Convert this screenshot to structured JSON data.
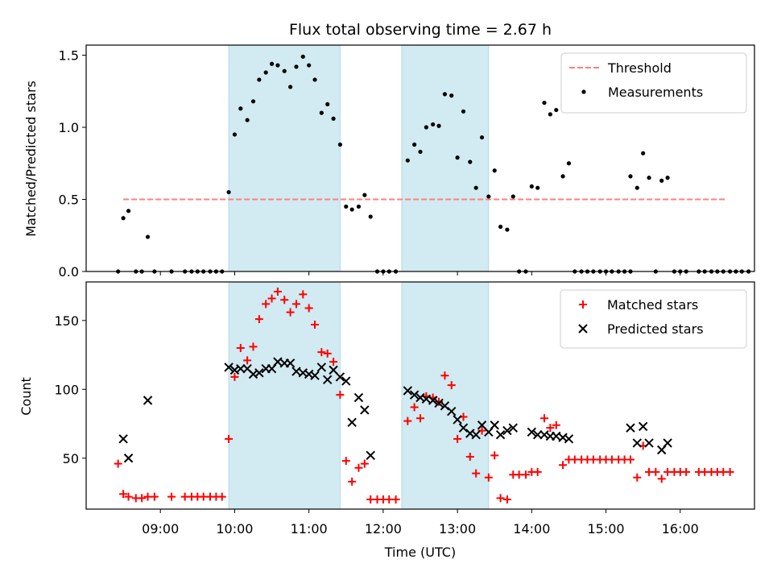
{
  "figure": {
    "title": "Flux total observing time = 2.67 h",
    "xlabel": "Time (UTC)",
    "x_ticks": [
      "09:00",
      "10:00",
      "11:00",
      "12:00",
      "13:00",
      "14:00",
      "15:00",
      "16:00"
    ],
    "highlight_color": "#add8e6",
    "shaded_intervals": [
      [
        9.92,
        11.42
      ],
      [
        12.25,
        13.42
      ]
    ]
  },
  "chart_data": [
    {
      "type": "scatter",
      "panel": "top",
      "ylabel": "Matched/Predicted stars",
      "ylim": [
        0,
        1.57
      ],
      "xlim": [
        8.0,
        17.0
      ],
      "y_ticks": [
        0.0,
        0.5,
        1.0,
        1.5
      ],
      "legend_placement": "top-right",
      "threshold": {
        "name": "Threshold",
        "value": 0.5,
        "x_range": [
          8.5,
          16.6
        ],
        "color": "#ff7f7f"
      },
      "series": [
        {
          "name": "Measurements",
          "color": "#000000",
          "points": [
            [
              8.43,
              0
            ],
            [
              8.5,
              0.37
            ],
            [
              8.57,
              0.42
            ],
            [
              8.67,
              0
            ],
            [
              8.75,
              0
            ],
            [
              8.83,
              0.24
            ],
            [
              8.92,
              0
            ],
            [
              9.15,
              0
            ],
            [
              9.33,
              0
            ],
            [
              9.42,
              0
            ],
            [
              9.5,
              0
            ],
            [
              9.58,
              0
            ],
            [
              9.67,
              0
            ],
            [
              9.75,
              0
            ],
            [
              9.83,
              0
            ],
            [
              9.92,
              0.55
            ],
            [
              10.0,
              0.95
            ],
            [
              10.08,
              1.13
            ],
            [
              10.17,
              1.05
            ],
            [
              10.25,
              1.18
            ],
            [
              10.33,
              1.33
            ],
            [
              10.42,
              1.38
            ],
            [
              10.5,
              1.44
            ],
            [
              10.58,
              1.43
            ],
            [
              10.67,
              1.39
            ],
            [
              10.75,
              1.28
            ],
            [
              10.83,
              1.42
            ],
            [
              10.92,
              1.49
            ],
            [
              11.0,
              1.43
            ],
            [
              11.08,
              1.33
            ],
            [
              11.17,
              1.1
            ],
            [
              11.25,
              1.16
            ],
            [
              11.33,
              1.06
            ],
            [
              11.42,
              0.88
            ],
            [
              11.5,
              0.45
            ],
            [
              11.58,
              0.43
            ],
            [
              11.67,
              0.45
            ],
            [
              11.75,
              0.53
            ],
            [
              11.83,
              0.38
            ],
            [
              11.92,
              0
            ],
            [
              12.0,
              0
            ],
            [
              12.08,
              0
            ],
            [
              12.17,
              0
            ],
            [
              12.33,
              0.77
            ],
            [
              12.42,
              0.88
            ],
            [
              12.5,
              0.83
            ],
            [
              12.58,
              1.0
            ],
            [
              12.67,
              1.02
            ],
            [
              12.75,
              1.01
            ],
            [
              12.83,
              1.23
            ],
            [
              12.92,
              1.22
            ],
            [
              13.0,
              0.79
            ],
            [
              13.08,
              1.11
            ],
            [
              13.17,
              0.76
            ],
            [
              13.25,
              0.58
            ],
            [
              13.33,
              0.93
            ],
            [
              13.42,
              0.52
            ],
            [
              13.5,
              0.7
            ],
            [
              13.58,
              0.31
            ],
            [
              13.67,
              0.29
            ],
            [
              13.75,
              0.52
            ],
            [
              13.83,
              0
            ],
            [
              13.92,
              0
            ],
            [
              14.0,
              0.59
            ],
            [
              14.08,
              0.58
            ],
            [
              14.17,
              1.17
            ],
            [
              14.25,
              1.09
            ],
            [
              14.33,
              1.12
            ],
            [
              14.42,
              0.66
            ],
            [
              14.5,
              0.75
            ],
            [
              14.58,
              0
            ],
            [
              14.67,
              0
            ],
            [
              14.75,
              0
            ],
            [
              14.83,
              0
            ],
            [
              14.92,
              0
            ],
            [
              15.0,
              0
            ],
            [
              15.08,
              0
            ],
            [
              15.17,
              0
            ],
            [
              15.25,
              0
            ],
            [
              15.33,
              0
            ],
            [
              15.33,
              0.66
            ],
            [
              15.42,
              0.58
            ],
            [
              15.5,
              0.82
            ],
            [
              15.58,
              0.65
            ],
            [
              15.67,
              0
            ],
            [
              15.75,
              0.63
            ],
            [
              15.83,
              0.65
            ],
            [
              15.92,
              0
            ],
            [
              16.0,
              0
            ],
            [
              16.08,
              0
            ],
            [
              16.25,
              0
            ],
            [
              16.33,
              0
            ],
            [
              16.42,
              0
            ],
            [
              16.5,
              0
            ],
            [
              16.58,
              0
            ],
            [
              16.67,
              0
            ],
            [
              16.75,
              0
            ],
            [
              16.83,
              0
            ],
            [
              16.92,
              0
            ]
          ]
        }
      ]
    },
    {
      "type": "scatter",
      "panel": "bottom",
      "ylabel": "Count",
      "ylim": [
        13,
        178
      ],
      "xlim": [
        8.0,
        17.0
      ],
      "y_ticks": [
        50,
        100,
        150
      ],
      "legend_placement": "top-right",
      "series": [
        {
          "name": "Matched stars",
          "marker": "+",
          "color": "#ff0000",
          "points": [
            [
              8.43,
              46
            ],
            [
              8.5,
              24
            ],
            [
              8.57,
              22
            ],
            [
              8.67,
              21
            ],
            [
              8.75,
              21
            ],
            [
              8.83,
              22
            ],
            [
              8.92,
              22
            ],
            [
              9.15,
              22
            ],
            [
              9.33,
              22
            ],
            [
              9.42,
              22
            ],
            [
              9.5,
              22
            ],
            [
              9.58,
              22
            ],
            [
              9.67,
              22
            ],
            [
              9.75,
              22
            ],
            [
              9.83,
              22
            ],
            [
              9.92,
              64
            ],
            [
              10.0,
              109
            ],
            [
              10.08,
              130
            ],
            [
              10.17,
              121
            ],
            [
              10.25,
              131
            ],
            [
              10.33,
              151
            ],
            [
              10.42,
              162
            ],
            [
              10.5,
              166
            ],
            [
              10.58,
              171
            ],
            [
              10.67,
              165
            ],
            [
              10.75,
              156
            ],
            [
              10.83,
              162
            ],
            [
              10.92,
              169
            ],
            [
              11.0,
              159
            ],
            [
              11.08,
              147
            ],
            [
              11.17,
              127
            ],
            [
              11.25,
              126
            ],
            [
              11.33,
              120
            ],
            [
              11.42,
              96
            ],
            [
              11.5,
              48
            ],
            [
              11.58,
              33
            ],
            [
              11.67,
              43
            ],
            [
              11.75,
              46
            ],
            [
              11.83,
              20
            ],
            [
              11.92,
              20
            ],
            [
              12.0,
              20
            ],
            [
              12.08,
              20
            ],
            [
              12.17,
              20
            ],
            [
              12.33,
              77
            ],
            [
              12.42,
              87
            ],
            [
              12.5,
              79
            ],
            [
              12.58,
              95
            ],
            [
              12.67,
              94
            ],
            [
              12.75,
              91
            ],
            [
              12.83,
              110
            ],
            [
              12.92,
              103
            ],
            [
              13.0,
              64
            ],
            [
              13.08,
              80
            ],
            [
              13.17,
              51
            ],
            [
              13.25,
              39
            ],
            [
              13.33,
              70
            ],
            [
              13.42,
              36
            ],
            [
              13.5,
              52
            ],
            [
              13.58,
              21
            ],
            [
              13.67,
              20
            ],
            [
              13.75,
              38
            ],
            [
              13.83,
              38
            ],
            [
              13.92,
              38
            ],
            [
              14.0,
              40
            ],
            [
              14.08,
              40
            ],
            [
              14.17,
              79
            ],
            [
              14.25,
              72
            ],
            [
              14.33,
              74
            ],
            [
              14.42,
              45
            ],
            [
              14.5,
              49
            ],
            [
              14.58,
              49
            ],
            [
              14.67,
              49
            ],
            [
              14.75,
              49
            ],
            [
              14.83,
              49
            ],
            [
              14.92,
              49
            ],
            [
              15.0,
              49
            ],
            [
              15.08,
              49
            ],
            [
              15.17,
              49
            ],
            [
              15.25,
              49
            ],
            [
              15.33,
              49
            ],
            [
              15.42,
              36
            ],
            [
              15.5,
              59
            ],
            [
              15.58,
              40
            ],
            [
              15.67,
              40
            ],
            [
              15.75,
              35
            ],
            [
              15.83,
              40
            ],
            [
              15.92,
              40
            ],
            [
              16.0,
              40
            ],
            [
              16.08,
              40
            ],
            [
              16.25,
              40
            ],
            [
              16.33,
              40
            ],
            [
              16.42,
              40
            ],
            [
              16.5,
              40
            ],
            [
              16.58,
              40
            ],
            [
              16.67,
              40
            ]
          ]
        },
        {
          "name": "Predicted stars",
          "marker": "x",
          "color": "#000000",
          "points": [
            [
              8.5,
              64
            ],
            [
              8.57,
              50
            ],
            [
              8.83,
              92
            ],
            [
              9.92,
              116
            ],
            [
              10.0,
              114
            ],
            [
              10.08,
              115
            ],
            [
              10.17,
              115
            ],
            [
              10.25,
              111
            ],
            [
              10.33,
              112
            ],
            [
              10.42,
              115
            ],
            [
              10.5,
              115
            ],
            [
              10.58,
              120
            ],
            [
              10.67,
              119
            ],
            [
              10.75,
              119
            ],
            [
              10.83,
              113
            ],
            [
              10.92,
              112
            ],
            [
              11.0,
              111
            ],
            [
              11.08,
              110
            ],
            [
              11.17,
              116
            ],
            [
              11.25,
              107
            ],
            [
              11.33,
              114
            ],
            [
              11.42,
              109
            ],
            [
              11.5,
              106
            ],
            [
              11.58,
              76
            ],
            [
              11.67,
              94
            ],
            [
              11.75,
              85
            ],
            [
              11.83,
              52
            ],
            [
              12.33,
              99
            ],
            [
              12.42,
              96
            ],
            [
              12.5,
              94
            ],
            [
              12.58,
              93
            ],
            [
              12.67,
              92
            ],
            [
              12.75,
              90
            ],
            [
              12.83,
              88
            ],
            [
              12.92,
              84
            ],
            [
              13.0,
              78
            ],
            [
              13.08,
              72
            ],
            [
              13.17,
              68
            ],
            [
              13.25,
              67
            ],
            [
              13.33,
              74
            ],
            [
              13.42,
              69
            ],
            [
              13.5,
              74
            ],
            [
              13.58,
              67
            ],
            [
              13.67,
              70
            ],
            [
              13.75,
              72
            ],
            [
              14.0,
              69
            ],
            [
              14.08,
              67
            ],
            [
              14.17,
              67
            ],
            [
              14.25,
              66
            ],
            [
              14.33,
              66
            ],
            [
              14.42,
              65
            ],
            [
              14.5,
              64
            ],
            [
              15.33,
              72
            ],
            [
              15.42,
              61
            ],
            [
              15.5,
              73
            ],
            [
              15.58,
              61
            ],
            [
              15.75,
              56
            ],
            [
              15.83,
              61
            ]
          ]
        }
      ]
    }
  ]
}
